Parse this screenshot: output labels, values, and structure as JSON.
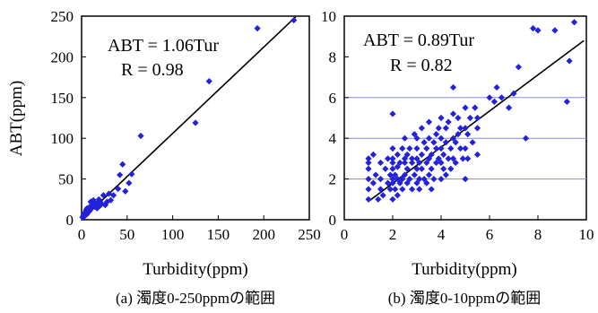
{
  "chart_data": [
    {
      "type": "scatter",
      "title": "",
      "xlabel": "Turbidity(ppm)",
      "ylabel": "ABT(ppm)",
      "xlim": [
        0,
        250
      ],
      "ylim": [
        0,
        250
      ],
      "xticks": [
        "0",
        "50",
        "100",
        "150",
        "200",
        "250"
      ],
      "yticks": [
        "0",
        "50",
        "100",
        "150",
        "200",
        "250"
      ],
      "grid": false,
      "annotations": [
        "ABT = 1.06Tur",
        "R = 0.98"
      ],
      "caption": "(a) 濁度0-250ppmの範囲",
      "marker_color": "#2222dd",
      "fit_line": {
        "slope": 1.06,
        "intercept": 0,
        "x_range": [
          0,
          235
        ]
      },
      "series": [
        {
          "x": [
            1,
            2,
            3,
            3,
            4,
            5,
            5,
            6,
            6,
            7,
            8,
            9,
            10,
            10,
            11,
            12,
            13,
            14,
            15,
            16,
            17,
            18,
            19,
            20,
            22,
            24,
            26,
            28,
            30,
            32,
            35,
            40,
            42,
            45,
            48,
            52,
            55,
            65,
            125,
            140,
            193,
            233
          ],
          "y": [
            3,
            5,
            4,
            8,
            6,
            9,
            12,
            7,
            14,
            10,
            13,
            11,
            17,
            22,
            15,
            19,
            24,
            16,
            20,
            18,
            14,
            21,
            25,
            17,
            20,
            30,
            18,
            22,
            32,
            24,
            30,
            38,
            55,
            68,
            35,
            45,
            56,
            103,
            119,
            170,
            235,
            245
          ]
        }
      ]
    },
    {
      "type": "scatter",
      "title": "",
      "xlabel": "Turbidity(ppm)",
      "ylabel": "",
      "xlim": [
        0,
        10
      ],
      "ylim": [
        0,
        10
      ],
      "xticks": [
        "0",
        "2",
        "4",
        "6",
        "8",
        "10"
      ],
      "yticks": [
        "0",
        "2",
        "4",
        "6",
        "8",
        "10"
      ],
      "grid": true,
      "grid_lines_y": [
        2,
        4,
        6
      ],
      "annotations": [
        "ABT = 0.89Tur",
        "R = 0.82"
      ],
      "caption": "(b) 濁度0-10ppmの範囲",
      "marker_color": "#2222dd",
      "grid_color": "#8888dd",
      "fit_line": {
        "x_range": [
          1.0,
          9.9
        ],
        "y_range": [
          0.9,
          8.8
        ]
      },
      "series": [
        {
          "x": [
            1.0,
            1.0,
            1.0,
            1.0,
            1.0,
            1.0,
            1.2,
            1.2,
            1.3,
            1.4,
            1.5,
            1.5,
            1.5,
            1.6,
            1.7,
            1.8,
            1.8,
            1.9,
            1.9,
            2.0,
            2.0,
            2.0,
            2.0,
            2.0,
            2.0,
            2.0,
            2.0,
            2.1,
            2.1,
            2.2,
            2.2,
            2.2,
            2.2,
            2.3,
            2.3,
            2.4,
            2.4,
            2.4,
            2.5,
            2.5,
            2.5,
            2.5,
            2.6,
            2.6,
            2.6,
            2.7,
            2.7,
            2.8,
            2.8,
            2.8,
            2.9,
            2.9,
            3.0,
            3.0,
            3.0,
            3.0,
            3.0,
            3.1,
            3.1,
            3.1,
            3.2,
            3.2,
            3.2,
            3.3,
            3.3,
            3.4,
            3.4,
            3.4,
            3.5,
            3.5,
            3.5,
            3.5,
            3.6,
            3.6,
            3.6,
            3.7,
            3.7,
            3.8,
            3.8,
            3.8,
            3.9,
            3.9,
            4.0,
            4.0,
            4.0,
            4.0,
            4.0,
            4.1,
            4.1,
            4.2,
            4.2,
            4.2,
            4.3,
            4.3,
            4.4,
            4.4,
            4.5,
            4.5,
            4.5,
            4.5,
            4.6,
            4.6,
            4.7,
            4.7,
            4.8,
            4.8,
            4.9,
            5.0,
            5.0,
            5.0,
            5.0,
            5.1,
            5.1,
            5.2,
            5.3,
            5.4,
            5.5,
            5.5,
            5.5,
            6.0,
            6.2,
            6.3,
            6.5,
            6.8,
            7.0,
            7.2,
            7.5,
            7.8,
            8.0,
            8.7,
            9.2,
            9.3,
            9.5
          ],
          "y": [
            1.0,
            2.0,
            2.5,
            3.0,
            1.5,
            2.8,
            1.8,
            3.2,
            2.2,
            1.0,
            1.5,
            2.0,
            2.8,
            1.2,
            2.5,
            1.8,
            3.0,
            2.2,
            1.5,
            2.0,
            2.5,
            3.0,
            1.0,
            1.8,
            2.8,
            3.5,
            5.2,
            2.2,
            1.5,
            2.0,
            2.6,
            3.2,
            1.2,
            1.8,
            2.8,
            2.0,
            3.5,
            1.5,
            2.2,
            2.8,
            3.0,
            4.0,
            1.8,
            2.5,
            3.2,
            2.0,
            3.5,
            1.5,
            2.8,
            3.0,
            2.2,
            4.2,
            1.8,
            2.5,
            3.0,
            3.5,
            4.0,
            2.0,
            2.8,
            1.5,
            3.2,
            4.5,
            2.5,
            2.0,
            3.8,
            2.8,
            3.5,
            1.8,
            3.0,
            2.2,
            4.0,
            4.8,
            2.5,
            3.2,
            1.5,
            3.8,
            2.0,
            2.8,
            4.2,
            3.5,
            3.0,
            4.5,
            2.0,
            2.8,
            3.5,
            4.0,
            5.0,
            2.5,
            3.2,
            3.8,
            4.5,
            2.2,
            3.0,
            4.8,
            2.5,
            3.5,
            3.0,
            4.0,
            5.2,
            6.5,
            2.8,
            3.8,
            4.2,
            5.0,
            3.5,
            4.5,
            3.0,
            2.0,
            3.5,
            4.5,
            5.5,
            3.0,
            4.2,
            5.0,
            3.8,
            5.5,
            3.2,
            4.5,
            5.0,
            6.0,
            5.8,
            6.5,
            6.0,
            5.5,
            6.2,
            7.5,
            4.0,
            9.4,
            9.3,
            9.3,
            5.8,
            7.8,
            9.7
          ]
        }
      ]
    }
  ]
}
